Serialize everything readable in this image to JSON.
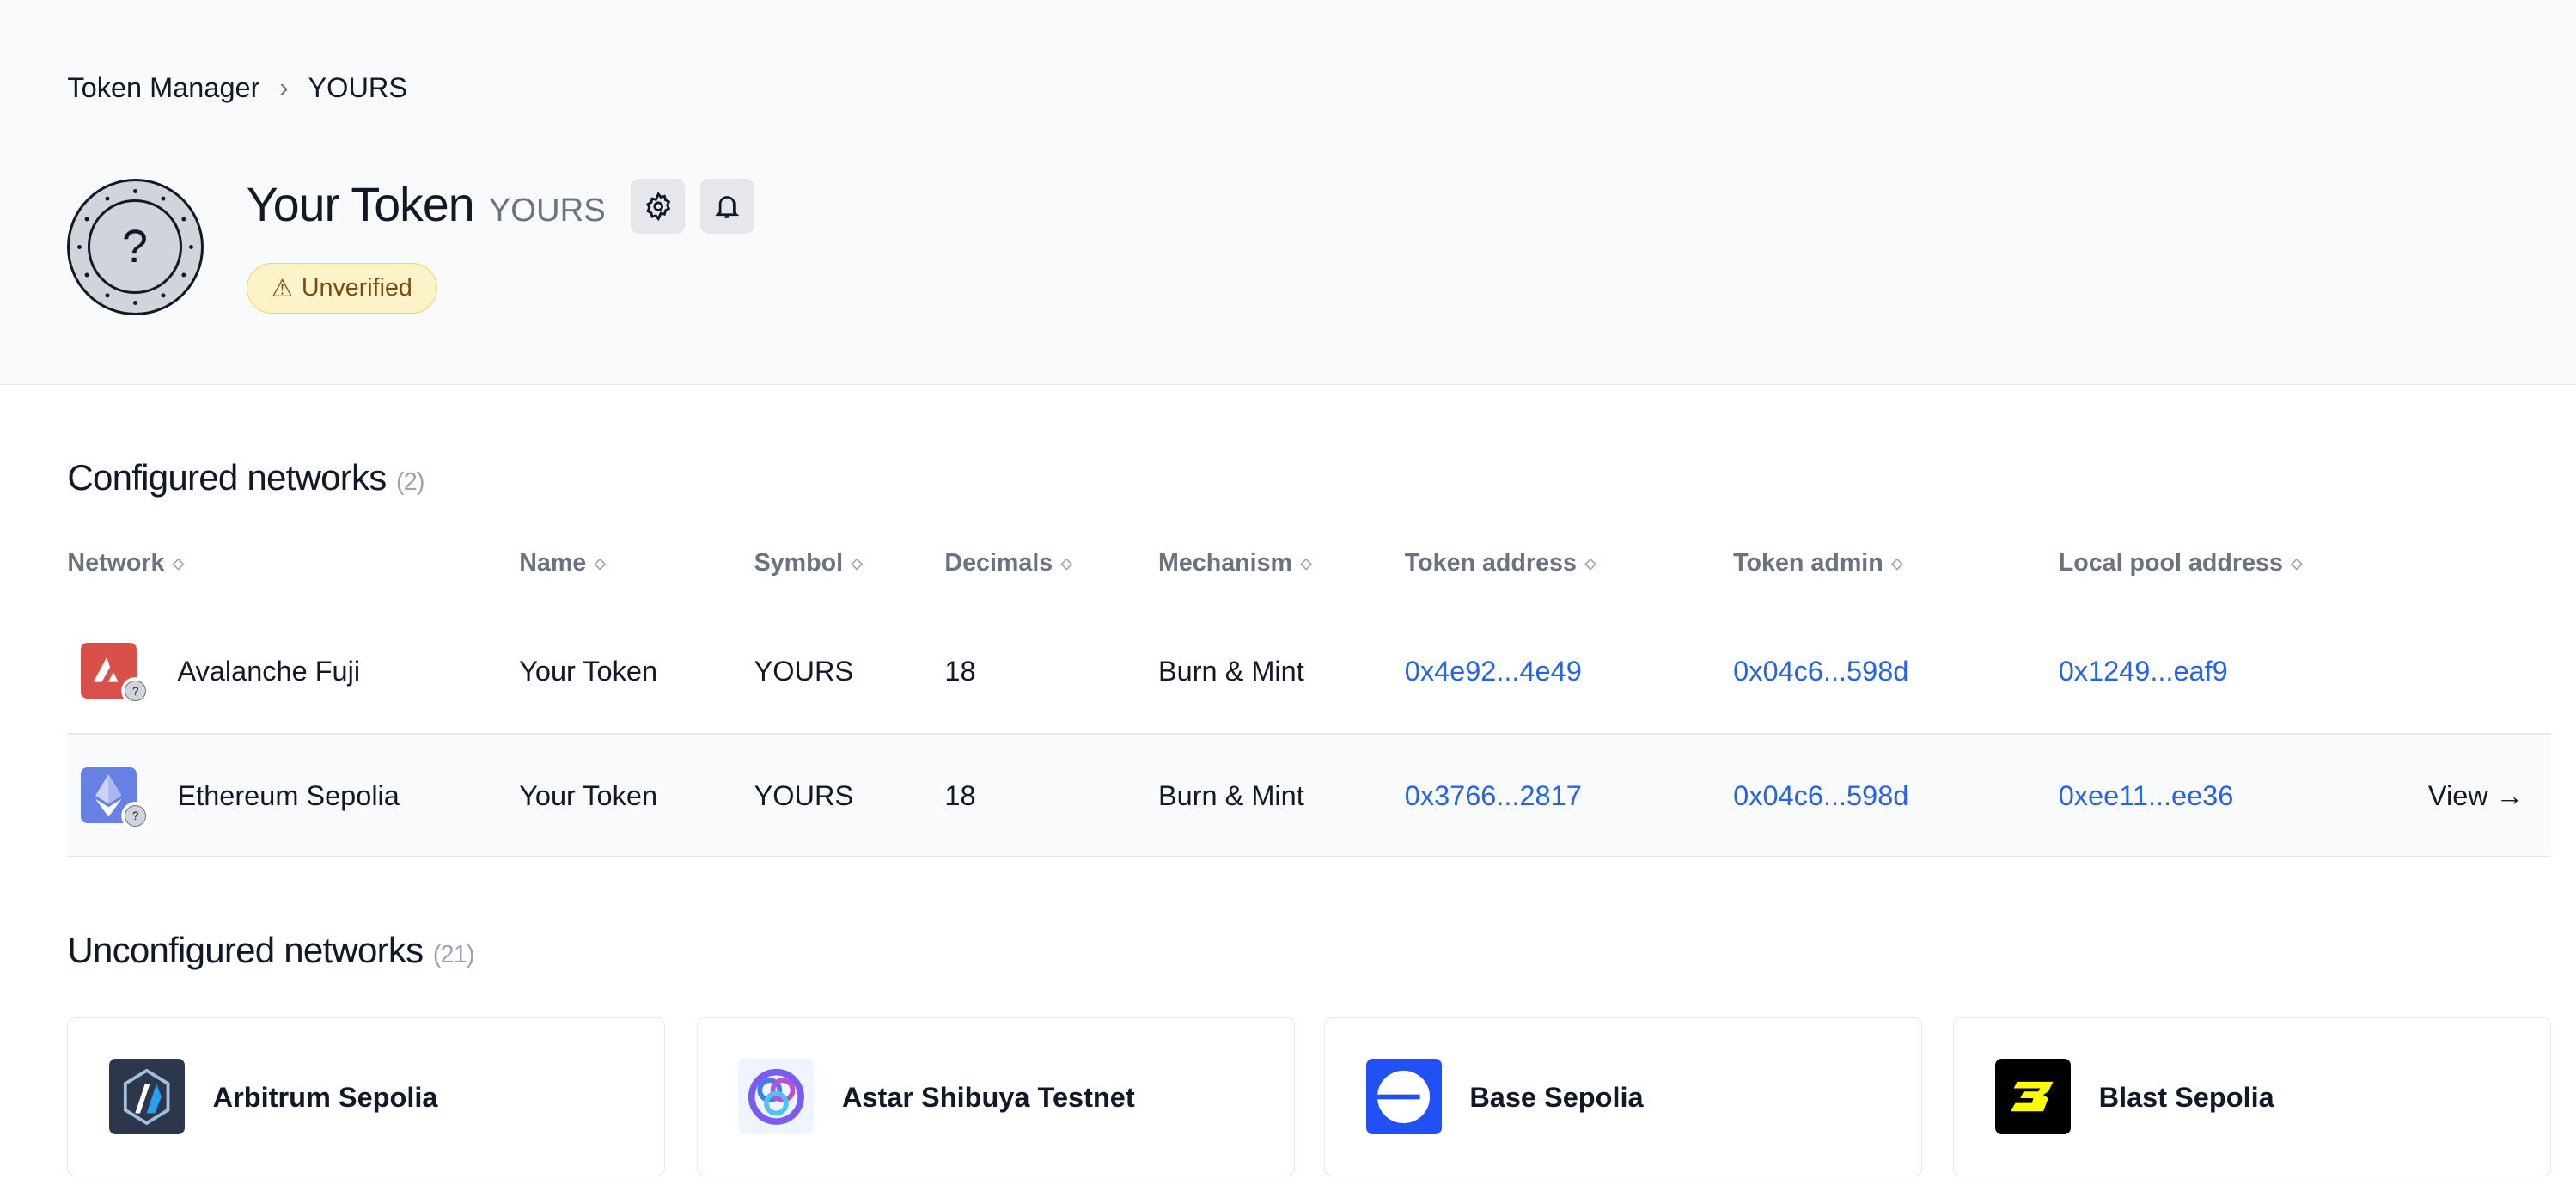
{
  "breadcrumb": {
    "root": "Token Manager",
    "current": "YOURS"
  },
  "token": {
    "name": "Your Token",
    "symbol": "YOURS",
    "status": "Unverified",
    "avatar_icon": "question-coin-icon"
  },
  "actions": {
    "settings_icon": "gear-icon",
    "notify_icon": "bell-icon"
  },
  "configured": {
    "title": "Configured networks",
    "count": "(2)",
    "columns": [
      "Network",
      "Name",
      "Symbol",
      "Decimals",
      "Mechanism",
      "Token address",
      "Token admin",
      "Local pool address"
    ],
    "rows": [
      {
        "network": "Avalanche Fuji",
        "name": "Your Token",
        "symbol": "YOURS",
        "decimals": "18",
        "mechanism": "Burn & Mint",
        "token_address": "0x4e92...4e49",
        "token_admin": "0x04c6...598d",
        "pool_address": "0x1249...eaf9",
        "icon_color": "#d9504a"
      },
      {
        "network": "Ethereum Sepolia",
        "name": "Your Token",
        "symbol": "YOURS",
        "decimals": "18",
        "mechanism": "Burn & Mint",
        "token_address": "0x3766...2817",
        "token_admin": "0x04c6...598d",
        "pool_address": "0xee11...ee36",
        "icon_color": "#6680e3",
        "action": "View →"
      }
    ]
  },
  "unconfigured": {
    "title": "Unconfigured networks",
    "count": "(21)",
    "cards": [
      {
        "label": "Arbitrum Sepolia",
        "color": "#2d374b"
      },
      {
        "label": "Astar Shibuya Testnet",
        "color": "#eef5fe"
      },
      {
        "label": "Base Sepolia",
        "color": "#2151f5"
      },
      {
        "label": "Blast Sepolia",
        "color": "#000000"
      }
    ]
  }
}
